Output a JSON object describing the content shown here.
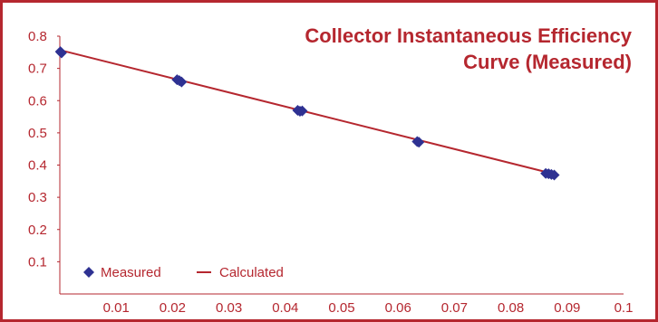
{
  "chart_data": {
    "type": "scatter",
    "title_lines": [
      "Collector Instantaneous Efficiency",
      "Curve (Measured)"
    ],
    "xlabel": "",
    "ylabel": "",
    "xlim": [
      0,
      0.1
    ],
    "ylim": [
      0,
      0.8
    ],
    "x_ticks": [
      "0.01",
      "0.02",
      "0.03",
      "0.04",
      "0.05",
      "0.06",
      "0.07",
      "0.08",
      "0.09",
      "0.1"
    ],
    "y_ticks": [
      "0.1",
      "0.2",
      "0.3",
      "0.4",
      "0.5",
      "0.6",
      "0.7",
      "0.8"
    ],
    "grid": false,
    "legend_position": "bottom-left",
    "series": [
      {
        "name": "Measured",
        "kind": "points",
        "marker": "diamond",
        "color": "#2e3192",
        "points": [
          [
            0.0001,
            0.752
          ],
          [
            0.0003,
            0.748
          ],
          [
            0.0208,
            0.665
          ],
          [
            0.0212,
            0.662
          ],
          [
            0.0216,
            0.658
          ],
          [
            0.0422,
            0.57
          ],
          [
            0.0426,
            0.567
          ],
          [
            0.043,
            0.568
          ],
          [
            0.0634,
            0.473
          ],
          [
            0.0637,
            0.471
          ],
          [
            0.0862,
            0.374
          ],
          [
            0.0867,
            0.373
          ],
          [
            0.0872,
            0.371
          ],
          [
            0.0877,
            0.369
          ]
        ]
      },
      {
        "name": "Calculated",
        "kind": "line",
        "color": "#b5272f",
        "points": [
          [
            0.0,
            0.757
          ],
          [
            0.0875,
            0.373
          ]
        ]
      }
    ]
  }
}
